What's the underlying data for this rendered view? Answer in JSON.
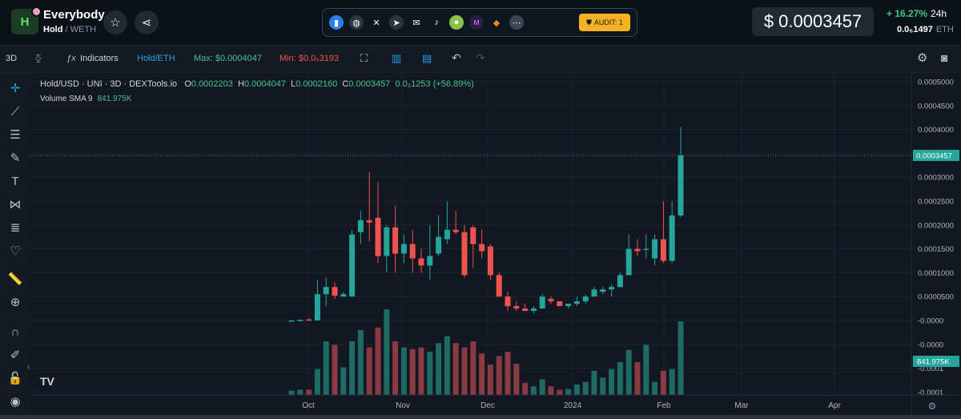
{
  "header": {
    "token_name": "Everybody",
    "pair_base": "Hold",
    "pair_quote": "/ WETH",
    "audit_label": "AUDIT: 1",
    "price_usd": "$ 0.0003457",
    "change_pct": "+ 16.27%",
    "change_period": "24h",
    "price_eth": "0.0₅1497",
    "price_eth_unit": "ETH",
    "social_icons": [
      "chart-icon",
      "globe-icon",
      "x-icon",
      "telegram-icon",
      "mail-icon",
      "tiktok-icon",
      "coingecko-icon",
      "other-icon",
      "metamask-icon",
      "more-icon"
    ]
  },
  "toolbar": {
    "timeframe": "3D",
    "indicators": "Indicators",
    "symbol": "Hold/ETH",
    "max_label": "Max: $0.0004047",
    "min_label": "Min: $0.0₅3193"
  },
  "legend": {
    "title": "Hold/USD · UNI · 3D · DEXTools.io",
    "o_label": "O",
    "o": "0.0002203",
    "h_label": "H",
    "h": "0.0004047",
    "l_label": "L",
    "l": "0.0002160",
    "c_label": "C",
    "c": "0.0003457",
    "chg": "0.0₃1253 (+56.89%)",
    "volume_label": "Volume SMA 9",
    "volume_value": "841.975K"
  },
  "chart_data": {
    "type": "candlestick",
    "price_axis_ticks": [
      "0.0005000",
      "0.0004500",
      "0.0004000",
      "0.0003500",
      "0.0003000",
      "0.0002500",
      "0.0002000",
      "0.0001500",
      "0.0001000",
      "0.0000500",
      "-0.0000",
      "-0.0000",
      "-0.0001",
      "-0.0001"
    ],
    "price_axis_values": [
      0.0005,
      0.00045,
      0.0004,
      0.00035,
      0.0003,
      0.00025,
      0.0002,
      0.00015,
      0.0001,
      5e-05,
      0.0,
      -5e-05,
      -0.0001,
      -0.00015
    ],
    "last_price_label": "0.0003457",
    "last_price": 0.0003457,
    "volume_label": "841.975K",
    "x_ticks": [
      "Oct",
      "Nov",
      "Dec",
      "2024",
      "Feb",
      "Mar",
      "Apr"
    ],
    "colors": {
      "up": "#26a69a",
      "down": "#ef5350",
      "vol_up": "#1e6b61",
      "vol_down": "#8a3a42"
    },
    "candles": [
      {
        "o": 0.0,
        "h": 0.0,
        "l": 0.0,
        "c": 0.0,
        "v": 0.05
      },
      {
        "o": 0.0,
        "h": 2e-06,
        "l": 0.0,
        "c": 1e-06,
        "v": 0.06
      },
      {
        "o": 2e-06,
        "h": 4e-06,
        "l": 0.0,
        "c": 0.0,
        "v": 0.06
      },
      {
        "o": 0.0,
        "h": 8.5e-05,
        "l": 0.0,
        "c": 5.5e-05,
        "v": 0.3
      },
      {
        "o": 5.5e-05,
        "h": 9e-05,
        "l": 3e-05,
        "c": 7e-05,
        "v": 0.62
      },
      {
        "o": 7e-05,
        "h": 8e-05,
        "l": 4.5e-05,
        "c": 5.2e-05,
        "v": 0.58
      },
      {
        "o": 5e-05,
        "h": 6e-05,
        "l": 5e-05,
        "c": 5.5e-05,
        "v": 0.32
      },
      {
        "o": 5e-05,
        "h": 0.00019,
        "l": 5e-05,
        "c": 0.00018,
        "v": 0.62
      },
      {
        "o": 0.000185,
        "h": 0.00023,
        "l": 0.00016,
        "c": 0.00021,
        "v": 0.75
      },
      {
        "o": 0.00021,
        "h": 0.00031,
        "l": 0.000165,
        "c": 0.000205,
        "v": 0.55
      },
      {
        "o": 0.000215,
        "h": 0.00029,
        "l": 0.00012,
        "c": 0.000135,
        "v": 0.78
      },
      {
        "o": 0.000135,
        "h": 0.0002,
        "l": 0.0001,
        "c": 0.000195,
        "v": 0.99
      },
      {
        "o": 0.000195,
        "h": 0.00024,
        "l": 0.0001,
        "c": 0.00014,
        "v": 0.62
      },
      {
        "o": 0.00014,
        "h": 0.00018,
        "l": 0.00012,
        "c": 0.00016,
        "v": 0.55
      },
      {
        "o": 0.00016,
        "h": 0.00019,
        "l": 0.0001,
        "c": 0.00013,
        "v": 0.53
      },
      {
        "o": 0.00013,
        "h": 0.00015,
        "l": 0.0001,
        "c": 0.000115,
        "v": 0.55
      },
      {
        "o": 0.000115,
        "h": 0.0002,
        "l": 8.5e-05,
        "c": 0.000135,
        "v": 0.5
      },
      {
        "o": 0.00014,
        "h": 0.00022,
        "l": 0.000135,
        "c": 0.000175,
        "v": 0.6
      },
      {
        "o": 0.00017,
        "h": 0.00025,
        "l": 0.00016,
        "c": 0.00019,
        "v": 0.68
      },
      {
        "o": 0.00019,
        "h": 0.00023,
        "l": 0.00018,
        "c": 0.000185,
        "v": 0.6
      },
      {
        "o": 0.000185,
        "h": 0.0002,
        "l": 9e-05,
        "c": 9.5e-05,
        "v": 0.55
      },
      {
        "o": 0.000195,
        "h": 0.0002,
        "l": 0.00011,
        "c": 0.00016,
        "v": 0.62
      },
      {
        "o": 0.00016,
        "h": 0.00019,
        "l": 0.00013,
        "c": 0.000145,
        "v": 0.48
      },
      {
        "o": 0.000155,
        "h": 0.00016,
        "l": 8.5e-05,
        "c": 9.5e-05,
        "v": 0.35
      },
      {
        "o": 9.5e-05,
        "h": 0.0001,
        "l": 5e-05,
        "c": 5e-05,
        "v": 0.45
      },
      {
        "o": 5e-05,
        "h": 6e-05,
        "l": 2e-05,
        "c": 3e-05,
        "v": 0.5
      },
      {
        "o": 3e-05,
        "h": 4e-05,
        "l": 2e-05,
        "c": 2.5e-05,
        "v": 0.36
      },
      {
        "o": 2.5e-05,
        "h": 3.5e-05,
        "l": 2e-05,
        "c": 2e-05,
        "v": 0.14
      },
      {
        "o": 2e-05,
        "h": 3e-05,
        "l": 1.5e-05,
        "c": 2.5e-05,
        "v": 0.1
      },
      {
        "o": 2.5e-05,
        "h": 5.5e-05,
        "l": 2.5e-05,
        "c": 5e-05,
        "v": 0.18
      },
      {
        "o": 4.5e-05,
        "h": 5e-05,
        "l": 3.5e-05,
        "c": 4e-05,
        "v": 0.1
      },
      {
        "o": 4e-05,
        "h": 4e-05,
        "l": 3e-05,
        "c": 3e-05,
        "v": 0.06
      },
      {
        "o": 3e-05,
        "h": 3.5e-05,
        "l": 2.5e-05,
        "c": 3.5e-05,
        "v": 0.07
      },
      {
        "o": 3.5e-05,
        "h": 5e-05,
        "l": 3e-05,
        "c": 4e-05,
        "v": 0.12
      },
      {
        "o": 4e-05,
        "h": 5.5e-05,
        "l": 3.5e-05,
        "c": 5e-05,
        "v": 0.15
      },
      {
        "o": 5e-05,
        "h": 7e-05,
        "l": 5e-05,
        "c": 6.5e-05,
        "v": 0.28
      },
      {
        "o": 6e-05,
        "h": 7e-05,
        "l": 5.5e-05,
        "c": 6.5e-05,
        "v": 0.2
      },
      {
        "o": 6.5e-05,
        "h": 7.5e-05,
        "l": 5e-05,
        "c": 7e-05,
        "v": 0.3
      },
      {
        "o": 7e-05,
        "h": 0.0001,
        "l": 7e-05,
        "c": 9.5e-05,
        "v": 0.38
      },
      {
        "o": 9.5e-05,
        "h": 0.00018,
        "l": 9.5e-05,
        "c": 0.00015,
        "v": 0.52
      },
      {
        "o": 0.00015,
        "h": 0.00017,
        "l": 0.000135,
        "c": 0.000145,
        "v": 0.38
      },
      {
        "o": 0.00015,
        "h": 0.00018,
        "l": 0.00013,
        "c": 0.00015,
        "v": 0.58
      },
      {
        "o": 0.00013,
        "h": 0.00018,
        "l": 0.000115,
        "c": 0.00017,
        "v": 0.15
      },
      {
        "o": 0.00017,
        "h": 0.00025,
        "l": 0.00012,
        "c": 0.000125,
        "v": 0.28
      },
      {
        "o": 0.000125,
        "h": 0.00025,
        "l": 0.00012,
        "c": 0.00022,
        "v": 0.3
      },
      {
        "o": 0.00022,
        "h": 0.0004047,
        "l": 0.000216,
        "c": 0.0003457,
        "v": 0.85
      }
    ]
  }
}
